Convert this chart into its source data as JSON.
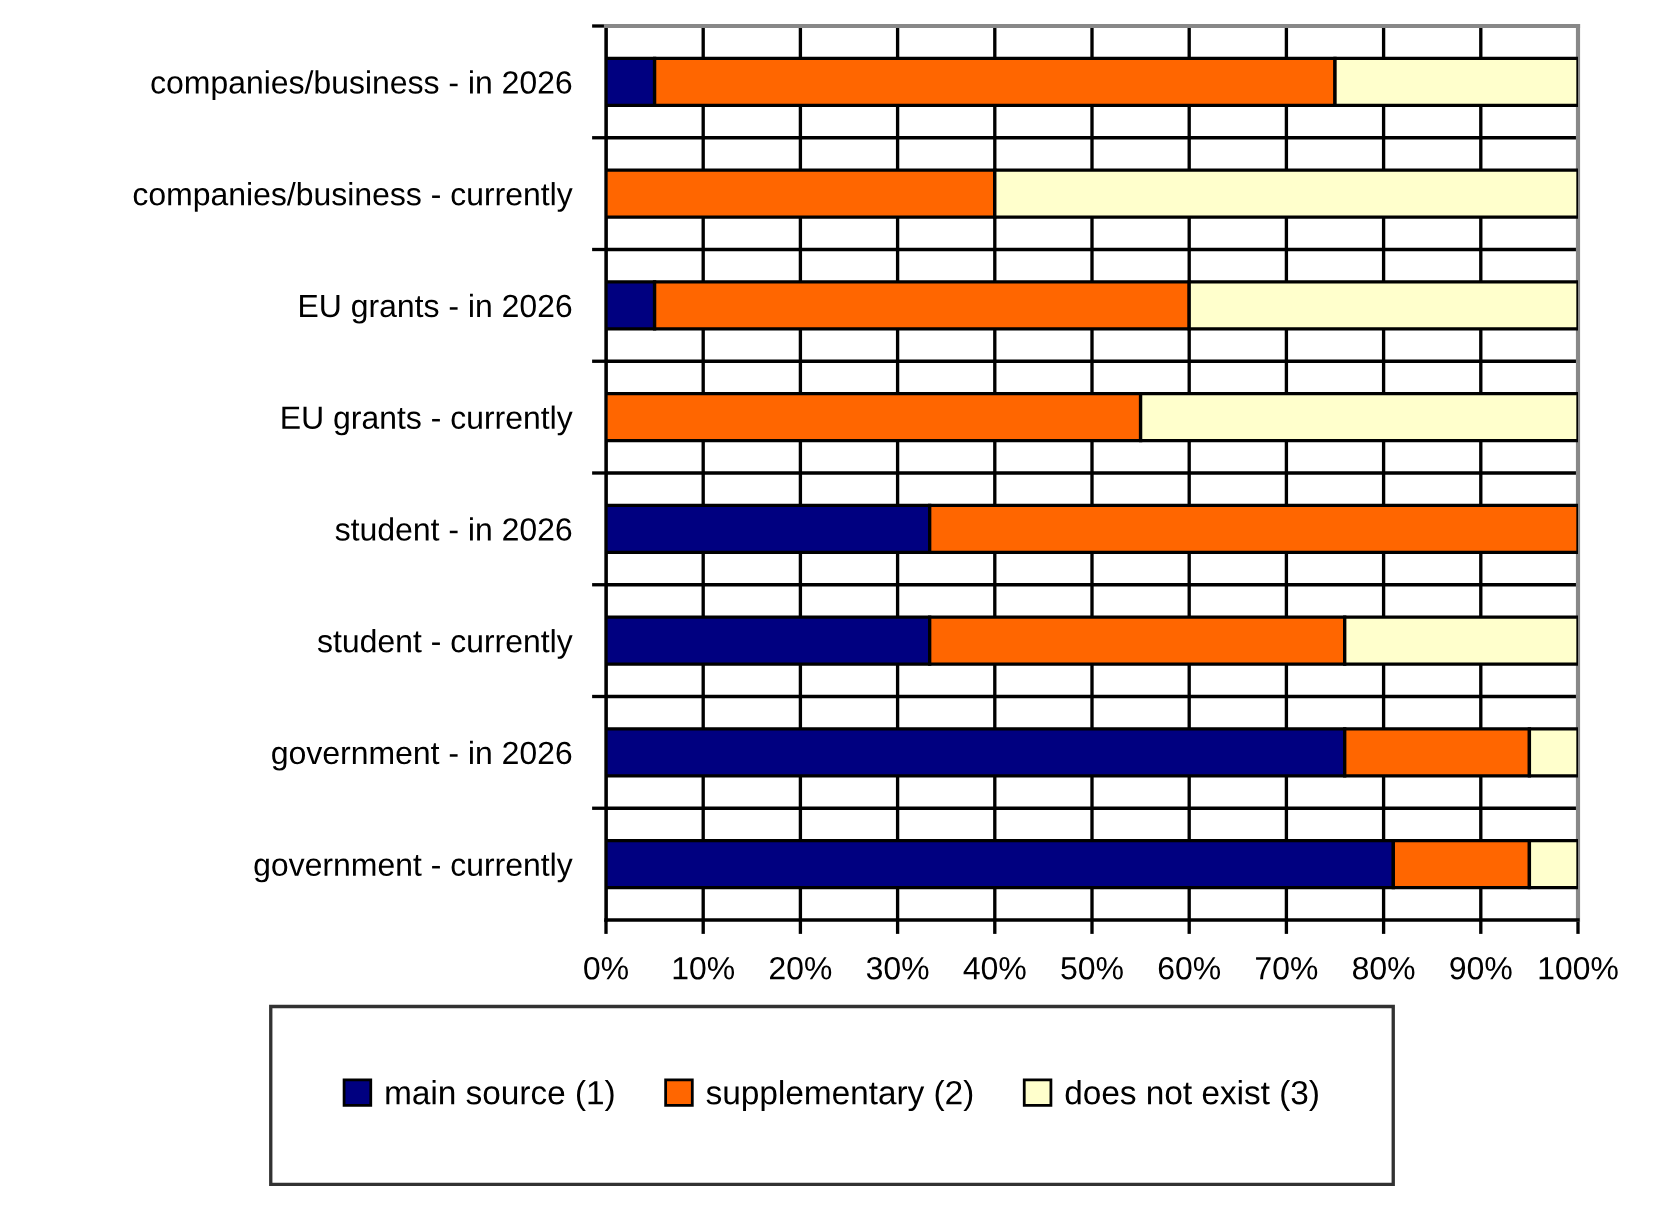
{
  "chart_data": {
    "type": "bar",
    "orientation": "horizontal",
    "stacked": true,
    "categories": [
      "companies/business - in 2026",
      "companies/business - currently",
      "EU grants - in 2026",
      "EU grants - currently",
      "student - in 2026",
      "student - currently",
      "government - in 2026",
      "government - currently"
    ],
    "series": [
      {
        "name": "main source (1)",
        "color": "#000080",
        "values": [
          5,
          0,
          5,
          0,
          33.3,
          33.3,
          76,
          81
        ]
      },
      {
        "name": "supplementary (2)",
        "color": "#ff6600",
        "values": [
          70,
          40,
          55,
          55,
          66.7,
          42.7,
          19,
          14
        ]
      },
      {
        "name": "does not exist (3)",
        "color": "#ffffcc",
        "values": [
          25,
          60,
          40,
          45,
          0,
          24,
          5,
          5
        ]
      }
    ],
    "xlim": [
      0,
      100
    ],
    "xticks": [
      {
        "value": 0,
        "label": "0%"
      },
      {
        "value": 10,
        "label": "10%"
      },
      {
        "value": 20,
        "label": "20%"
      },
      {
        "value": 30,
        "label": "30%"
      },
      {
        "value": 40,
        "label": "40%"
      },
      {
        "value": 50,
        "label": "50%"
      },
      {
        "value": 60,
        "label": "60%"
      },
      {
        "value": 70,
        "label": "70%"
      },
      {
        "value": 80,
        "label": "80%"
      },
      {
        "value": 90,
        "label": "90%"
      },
      {
        "value": 100,
        "label": "100%"
      }
    ],
    "grid": true,
    "legend": "bottom"
  }
}
